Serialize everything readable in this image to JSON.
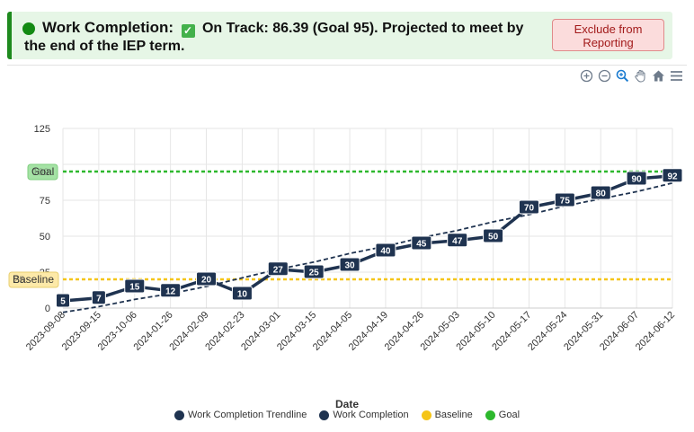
{
  "banner": {
    "title": "Work Completion:",
    "status_text": "On Track: 86.39 (Goal 95). Projected to meet by the end of the IEP term.",
    "exclude_button": "Exclude from Reporting"
  },
  "toolbar": {
    "icons": [
      "zoom-in-icon",
      "zoom-out-icon",
      "zoom-select-icon",
      "pan-hand-icon",
      "home-icon",
      "menu-icon"
    ]
  },
  "colors": {
    "accent": "#1e8a1e",
    "series": "#1f3350",
    "baseline": "#f5c518",
    "goal": "#2db82d"
  },
  "chart_data": {
    "type": "line",
    "xlabel": "Date",
    "ylim": [
      0,
      125
    ],
    "yticks": [
      0,
      25,
      50,
      75,
      100,
      125
    ],
    "y_tick_labels": [
      "0",
      "25",
      "50",
      "75",
      "",
      "125"
    ],
    "categories": [
      "2023-09-08",
      "2023-09-15",
      "2023-10-06",
      "2024-01-26",
      "2024-02-09",
      "2024-02-23",
      "2024-03-01",
      "2024-03-15",
      "2024-04-05",
      "2024-04-19",
      "2024-04-26",
      "2024-05-03",
      "2024-05-10",
      "2024-05-17",
      "2024-05-24",
      "2024-05-31",
      "2024-06-07",
      "2024-06-12"
    ],
    "series": [
      {
        "name": "Work Completion Trendline",
        "style": "dashed",
        "values": [
          -3,
          1,
          6,
          10,
          15,
          21,
          27,
          32,
          38,
          43,
          49,
          54,
          60,
          65,
          71,
          76,
          81,
          87
        ]
      },
      {
        "name": "Work Completion",
        "style": "solid",
        "values": [
          5,
          7,
          15,
          12,
          20,
          10,
          27,
          25,
          30,
          40,
          45,
          47,
          50,
          70,
          75,
          80,
          90,
          92
        ]
      }
    ],
    "reference_lines": [
      {
        "name": "Goal",
        "value": 95,
        "label": "Goal",
        "hidden_value_label": "100"
      },
      {
        "name": "Baseline",
        "value": 20,
        "label": "Baseline",
        "hidden_value_label": "25"
      }
    ],
    "legend": [
      {
        "name": "Work Completion Trendline",
        "color": "#1f3350"
      },
      {
        "name": "Work Completion",
        "color": "#1f3350"
      },
      {
        "name": "Baseline",
        "color": "#f5c518"
      },
      {
        "name": "Goal",
        "color": "#2db82d"
      }
    ],
    "legend_position": "bottom",
    "grid": true
  }
}
